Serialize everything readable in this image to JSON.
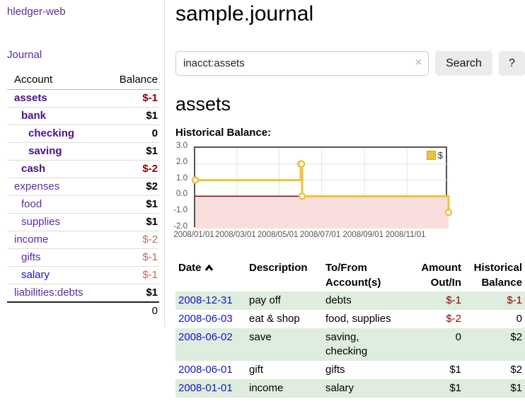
{
  "app": {
    "brand": "hledger-web"
  },
  "colors": {
    "link_purple": "#5B2D9E",
    "link_blue": "#1414CC",
    "negative_strong": "#8B0000",
    "negative_soft": "#C06868",
    "row_green": "#DEEDDE",
    "chart_gold": "#EDC240",
    "chart_negative_region": "#FADEDE",
    "chart_zero_line": "#8B0000"
  },
  "sidebar": {
    "journal_link": "Journal",
    "accounts": {
      "headers": {
        "account": "Account",
        "balance": "Balance"
      },
      "rows": [
        {
          "account": "assets",
          "balance": "$-1",
          "depth": 1,
          "current": true,
          "balance_style": "negative-strong",
          "link_style": "visited"
        },
        {
          "account": "bank",
          "balance": "$1",
          "depth": 2,
          "current": true,
          "balance_style": "normal",
          "link_style": "visited"
        },
        {
          "account": "checking",
          "balance": "0",
          "depth": 3,
          "current": true,
          "balance_style": "normal",
          "link_style": "visited"
        },
        {
          "account": "saving",
          "balance": "$1",
          "depth": 3,
          "current": true,
          "balance_style": "normal",
          "link_style": "visited"
        },
        {
          "account": "cash",
          "balance": "$-2",
          "depth": 2,
          "current": true,
          "balance_style": "negative-strong",
          "link_style": "visited"
        },
        {
          "account": "expenses",
          "balance": "$2",
          "depth": 1,
          "current": false,
          "balance_style": "normal",
          "link_style": "visited"
        },
        {
          "account": "food",
          "balance": "$1",
          "depth": 2,
          "current": false,
          "balance_style": "normal",
          "link_style": "visited"
        },
        {
          "account": "supplies",
          "balance": "$1",
          "depth": 2,
          "current": false,
          "balance_style": "normal",
          "link_style": "visited"
        },
        {
          "account": "income",
          "balance": "$-2",
          "depth": 1,
          "current": false,
          "balance_style": "negative-soft",
          "link_style": "visited"
        },
        {
          "account": "gifts",
          "balance": "$-1",
          "depth": 2,
          "current": false,
          "balance_style": "negative-soft",
          "link_style": "visited"
        },
        {
          "account": "salary",
          "balance": "$-1",
          "depth": 2,
          "current": false,
          "balance_style": "negative-soft",
          "link_style": "unvisited"
        },
        {
          "account": "liabilities:debts",
          "balance": "$1",
          "depth": 1,
          "current": false,
          "balance_style": "normal",
          "link_style": "visited"
        }
      ],
      "total": "0"
    }
  },
  "main": {
    "title": "sample.journal",
    "search": {
      "value": "inacct:assets",
      "clear_label": "×",
      "submit_label": "Search",
      "help_label": "?"
    },
    "heading": "assets",
    "chart_title": "Historical Balance:"
  },
  "chart_data": {
    "type": "line",
    "style": "step",
    "title": "Historical Balance:",
    "legend_label": "$",
    "legend_position": "top-right",
    "grid": true,
    "x_range": [
      "2008-01-01",
      "2008-12-31"
    ],
    "ylim": [
      -2,
      3
    ],
    "yticks": [
      3,
      2,
      1,
      0,
      -1,
      -2
    ],
    "xticks": [
      "2008/01/01",
      "2008/03/01",
      "2008/05/01",
      "2008/07/01",
      "2008/09/01",
      "2008/11/01"
    ],
    "negative_region_color": "#FADEDE",
    "zero_line_color": "#8B0000",
    "series": [
      {
        "name": "$",
        "color": "#EDC240",
        "points": [
          [
            "2008-01-01",
            1
          ],
          [
            "2008-06-01",
            2
          ],
          [
            "2008-06-02",
            2
          ],
          [
            "2008-06-03",
            0
          ],
          [
            "2008-12-31",
            -1
          ]
        ]
      }
    ]
  },
  "register": {
    "columns": [
      {
        "label": "Date",
        "align": "left",
        "sorted": "asc"
      },
      {
        "label": "Description",
        "align": "left"
      },
      {
        "label": "To/From Account(s)",
        "align": "left"
      },
      {
        "label": "Amount Out/In",
        "align": "right"
      },
      {
        "label": "Historical Balance",
        "align": "right"
      }
    ],
    "rows": [
      {
        "date": "2008-12-31",
        "description": "pay off",
        "to_from": "debts",
        "amount": "$-1",
        "balance": "$-1"
      },
      {
        "date": "2008-06-03",
        "description": "eat & shop",
        "to_from": "food, supplies",
        "amount": "$-2",
        "balance": "0"
      },
      {
        "date": "2008-06-02",
        "description": "save",
        "to_from": "saving,\nchecking",
        "amount": "0",
        "balance": "$2"
      },
      {
        "date": "2008-06-01",
        "description": "gift",
        "to_from": "gifts",
        "amount": "$1",
        "balance": "$2"
      },
      {
        "date": "2008-01-01",
        "description": "income",
        "to_from": "salary",
        "amount": "$1",
        "balance": "$1"
      }
    ]
  }
}
